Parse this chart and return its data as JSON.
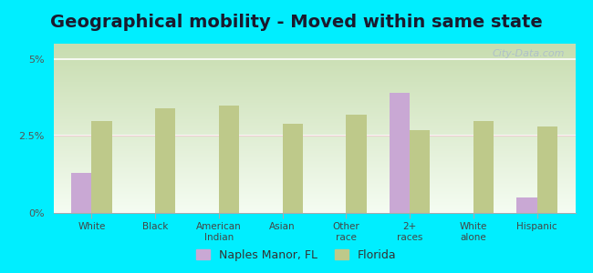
{
  "title": "Geographical mobility - Moved within same state",
  "categories": [
    "White",
    "Black",
    "American\nIndian",
    "Asian",
    "Other\nrace",
    "2+\nraces",
    "White\nalone",
    "Hispanic"
  ],
  "naples_values": [
    1.3,
    0.0,
    0.0,
    0.0,
    0.0,
    3.9,
    0.0,
    0.5
  ],
  "florida_values": [
    3.0,
    3.4,
    3.5,
    2.9,
    3.2,
    2.7,
    3.0,
    2.8
  ],
  "naples_color": "#c9a8d4",
  "florida_color": "#bec98a",
  "background_outer": "#00eeff",
  "background_chart_top": "#c8ddb0",
  "background_chart_bottom": "#f0f8ee",
  "ylim": [
    0,
    5.5
  ],
  "yticks": [
    0,
    2.5,
    5
  ],
  "ytick_labels": [
    "0%",
    "2.5%",
    "5%"
  ],
  "title_fontsize": 14,
  "title_color": "#1a1a2e",
  "legend_labels": [
    "Naples Manor, FL",
    "Florida"
  ],
  "bar_width": 0.32,
  "watermark": "City-Data.com"
}
